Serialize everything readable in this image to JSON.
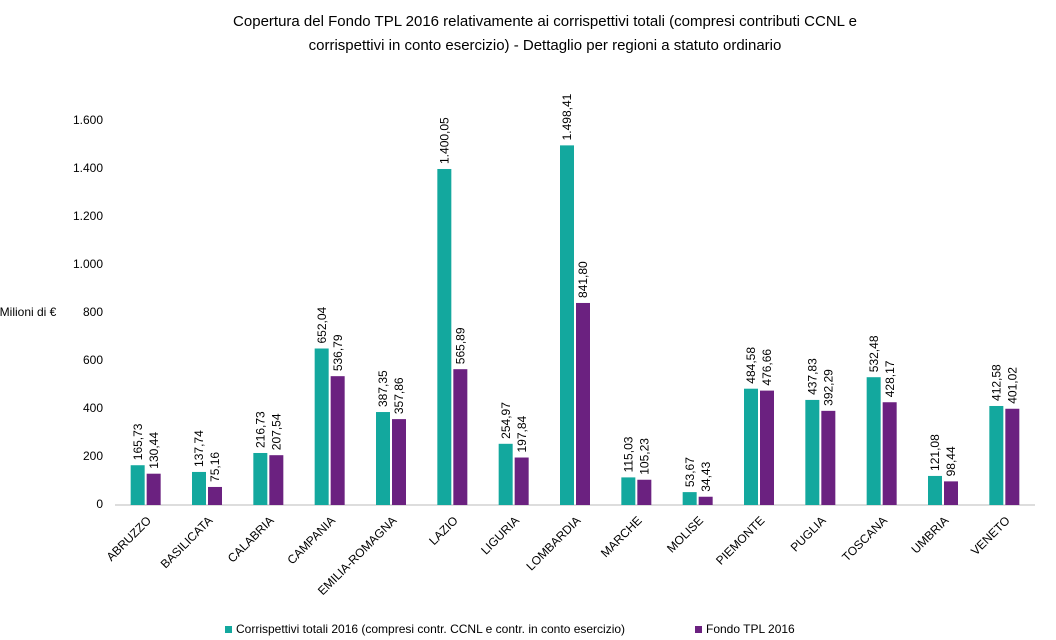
{
  "chart_data": {
    "type": "bar",
    "title": "Copertura del Fondo TPL 2016 relativamente ai corrispettivi totali (compresi contributi CCNL e",
    "subtitle": "corrispettivi in conto esercizio) - Dettaglio per regioni a statuto ordinario",
    "y_label": "Milioni di €",
    "categories": [
      "ABRUZZO",
      "BASILICATA",
      "CALABRIA",
      "CAMPANIA",
      "EMILIA-ROMAGNA",
      "LAZIO",
      "LIGURIA",
      "LOMBARDIA",
      "MARCHE",
      "MOLISE",
      "PIEMONTE",
      "PUGLIA",
      "TOSCANA",
      "UMBRIA",
      "VENETO"
    ],
    "series": [
      {
        "name": "Corrispettivi totali 2016 (compresi contr. CCNL e contr. in conto esercizio)",
        "color": "#13a89e",
        "values": [
          165.73,
          137.74,
          216.73,
          652.04,
          387.35,
          1400.05,
          254.97,
          1498.41,
          115.03,
          53.67,
          484.58,
          437.83,
          532.48,
          121.08,
          412.58
        ],
        "value_labels": [
          "165,73",
          "137,74",
          "216,73",
          "652,04",
          "387,35",
          "1.400,05",
          "254,97",
          "1.498,41",
          "115,03",
          "53,67",
          "484,58",
          "437,83",
          "532,48",
          "121,08",
          "412,58"
        ]
      },
      {
        "name": "Fondo TPL 2016",
        "color": "#6b2180",
        "values": [
          130.44,
          75.16,
          207.54,
          536.79,
          357.86,
          565.89,
          197.84,
          841.8,
          105.23,
          34.43,
          476.66,
          392.29,
          428.17,
          98.44,
          401.02
        ],
        "value_labels": [
          "130,44",
          "75,16",
          "207,54",
          "536,79",
          "357,86",
          "565,89",
          "197,84",
          "841,80",
          "105,23",
          "34,43",
          "476,66",
          "392,29",
          "428,17",
          "98,44",
          "401,02"
        ]
      }
    ],
    "ylim": [
      0,
      1700
    ],
    "yticks": [
      0,
      200,
      400,
      600,
      800,
      {
        "value": 1000,
        "label": "1.000"
      },
      {
        "value": 1200,
        "label": "1.200"
      },
      {
        "value": 1400,
        "label": "1.400"
      },
      {
        "value": 1600,
        "label": "1.600"
      }
    ],
    "grid": false
  }
}
